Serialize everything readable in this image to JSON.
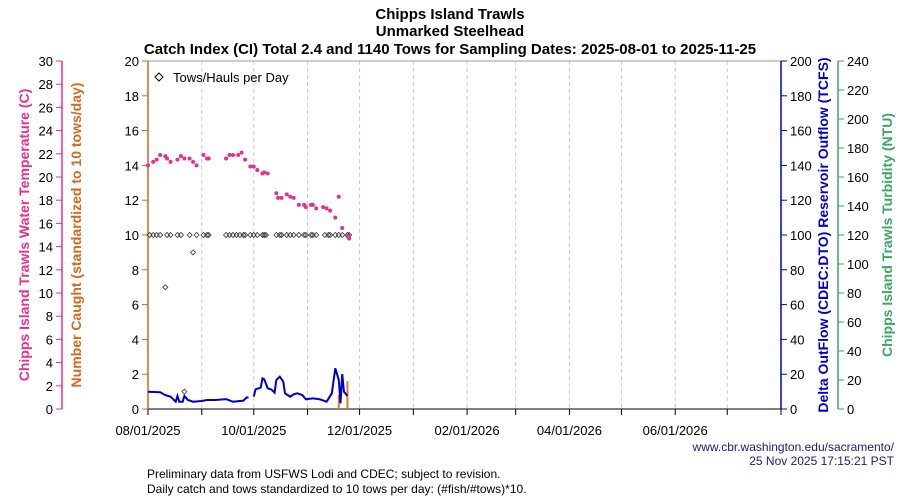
{
  "chart_data": {
    "type": "line",
    "title": [
      "Chipps Island Trawls",
      "Unmarked Steelhead",
      "Catch Index (CI) Total 2.4 and 1140 Tows for Sampling Dates: 2025-08-01 to 2025-11-25"
    ],
    "x_range": [
      "2025-08-01",
      "2026-08-01"
    ],
    "x_tick_labels": [
      "08/01/2025",
      "10/01/2025",
      "12/01/2025",
      "02/01/2026",
      "04/01/2026",
      "06/01/2026"
    ],
    "x_tick_dates": [
      "2025-08-01",
      "2025-10-01",
      "2025-12-01",
      "2026-02-01",
      "2026-04-01",
      "2026-06-01"
    ],
    "grid": "vertical dashed monthly",
    "axes": {
      "catch": {
        "label": "Number Caught (standardized to 10 tows/day)",
        "ylim": [
          0,
          20
        ],
        "ticks": [
          0,
          2,
          4,
          6,
          8,
          10,
          12,
          14,
          16,
          18,
          20
        ],
        "color": "#d2691e"
      },
      "temperature": {
        "label": "Chipps Island Trawls Water Temperature (C)",
        "ylim": [
          0,
          30
        ],
        "ticks": [
          0,
          2,
          4,
          6,
          8,
          10,
          12,
          14,
          16,
          18,
          20,
          22,
          24,
          26,
          28,
          30
        ],
        "color": "#e8308a"
      },
      "outflow": {
        "label": "Delta OutFlow (CDEC:DTO) Reservoir Outflow (TCFS)",
        "ylim": [
          0,
          200
        ],
        "ticks": [
          0,
          20,
          40,
          60,
          80,
          100,
          120,
          140,
          160,
          180,
          200
        ],
        "color": "#0000cc"
      },
      "turbidity": {
        "label": "Chipps Island Trawls Turbidity (NTU)",
        "ylim": [
          0,
          240
        ],
        "ticks": [
          0,
          20,
          40,
          60,
          80,
          100,
          120,
          140,
          160,
          180,
          200,
          220,
          240
        ],
        "color": "#3aa864"
      }
    },
    "legend": {
      "label": "Tows/Hauls per Day",
      "placement": "top-left"
    },
    "series": [
      {
        "name": "Number Caught (standardized to 10 tows/day)",
        "axis": "catch",
        "kind": "bar",
        "color": "#e07b22",
        "points": [
          [
            "2025-11-19",
            0.8
          ],
          [
            "2025-11-24",
            1.6
          ]
        ]
      },
      {
        "name": "Tows/Hauls per Day",
        "axis": "catch",
        "kind": "diamond",
        "color": "#333333",
        "points": [
          [
            "2025-08-02",
            10
          ],
          [
            "2025-08-04",
            10
          ],
          [
            "2025-08-06",
            10
          ],
          [
            "2025-08-08",
            10
          ],
          [
            "2025-08-11",
            7
          ],
          [
            "2025-08-12",
            10
          ],
          [
            "2025-08-14",
            10
          ],
          [
            "2025-08-18",
            10
          ],
          [
            "2025-08-20",
            10
          ],
          [
            "2025-08-22",
            1
          ],
          [
            "2025-08-25",
            10
          ],
          [
            "2025-08-27",
            9
          ],
          [
            "2025-08-29",
            10
          ],
          [
            "2025-09-02",
            10
          ],
          [
            "2025-09-04",
            10
          ],
          [
            "2025-09-05",
            10
          ],
          [
            "2025-09-15",
            10
          ],
          [
            "2025-09-17",
            10
          ],
          [
            "2025-09-19",
            10
          ],
          [
            "2025-09-21",
            10
          ],
          [
            "2025-09-23",
            10
          ],
          [
            "2025-09-25",
            10
          ],
          [
            "2025-09-26",
            10
          ],
          [
            "2025-09-29",
            10
          ],
          [
            "2025-10-01",
            10
          ],
          [
            "2025-10-03",
            10
          ],
          [
            "2025-10-06",
            10
          ],
          [
            "2025-10-07",
            10
          ],
          [
            "2025-10-08",
            10
          ],
          [
            "2025-10-14",
            10
          ],
          [
            "2025-10-16",
            10
          ],
          [
            "2025-10-17",
            10
          ],
          [
            "2025-10-20",
            10
          ],
          [
            "2025-10-22",
            10
          ],
          [
            "2025-10-24",
            10
          ],
          [
            "2025-10-27",
            10
          ],
          [
            "2025-10-30",
            10
          ],
          [
            "2025-10-31",
            10
          ],
          [
            "2025-11-03",
            10
          ],
          [
            "2025-11-04",
            10
          ],
          [
            "2025-11-06",
            10
          ],
          [
            "2025-11-11",
            10
          ],
          [
            "2025-11-13",
            10
          ],
          [
            "2025-11-14",
            10
          ],
          [
            "2025-11-17",
            10
          ],
          [
            "2025-11-19",
            10
          ],
          [
            "2025-11-21",
            10
          ],
          [
            "2025-11-24",
            10
          ],
          [
            "2025-11-25",
            10
          ]
        ]
      },
      {
        "name": "Chipps Island Trawls Water Temperature (C)",
        "axis": "temperature",
        "kind": "dot",
        "color": "#e8308a",
        "points": [
          [
            "2025-08-01",
            21.0
          ],
          [
            "2025-08-04",
            21.3
          ],
          [
            "2025-08-06",
            21.5
          ],
          [
            "2025-08-08",
            21.9
          ],
          [
            "2025-08-11",
            21.8
          ],
          [
            "2025-08-12",
            21.6
          ],
          [
            "2025-08-14",
            21.3
          ],
          [
            "2025-08-18",
            21.5
          ],
          [
            "2025-08-20",
            21.8
          ],
          [
            "2025-08-22",
            21.6
          ],
          [
            "2025-08-25",
            21.6
          ],
          [
            "2025-08-27",
            21.3
          ],
          [
            "2025-08-29",
            21.0
          ],
          [
            "2025-09-02",
            21.9
          ],
          [
            "2025-09-04",
            21.6
          ],
          [
            "2025-09-05",
            21.6
          ],
          [
            "2025-09-15",
            21.6
          ],
          [
            "2025-09-17",
            21.9
          ],
          [
            "2025-09-19",
            21.9
          ],
          [
            "2025-09-22",
            21.9
          ],
          [
            "2025-09-24",
            22.1
          ],
          [
            "2025-09-26",
            21.5
          ],
          [
            "2025-09-29",
            20.9
          ],
          [
            "2025-10-01",
            20.9
          ],
          [
            "2025-10-03",
            20.6
          ],
          [
            "2025-10-06",
            20.3
          ],
          [
            "2025-10-07",
            20.4
          ],
          [
            "2025-10-09",
            20.3
          ],
          [
            "2025-10-14",
            18.6
          ],
          [
            "2025-10-15",
            18.2
          ],
          [
            "2025-10-17",
            18.2
          ],
          [
            "2025-10-20",
            18.5
          ],
          [
            "2025-10-22",
            18.3
          ],
          [
            "2025-10-24",
            18.2
          ],
          [
            "2025-10-27",
            17.6
          ],
          [
            "2025-10-30",
            17.6
          ],
          [
            "2025-10-31",
            17.4
          ],
          [
            "2025-11-03",
            17.6
          ],
          [
            "2025-11-04",
            17.6
          ],
          [
            "2025-11-06",
            17.3
          ],
          [
            "2025-11-10",
            17.4
          ],
          [
            "2025-11-12",
            17.3
          ],
          [
            "2025-11-14",
            17.1
          ],
          [
            "2025-11-17",
            16.5
          ],
          [
            "2025-11-19",
            18.3
          ],
          [
            "2025-11-21",
            15.6
          ],
          [
            "2025-11-24",
            14.9
          ],
          [
            "2025-11-25",
            14.7
          ]
        ]
      },
      {
        "name": "Delta OutFlow (CDEC:DTO) Reservoir Outflow (TCFS)",
        "axis": "outflow",
        "kind": "line",
        "color": "#0000cc",
        "points": [
          [
            "2025-08-01",
            9.9
          ],
          [
            "2025-08-08",
            9.6
          ],
          [
            "2025-08-11",
            8.0
          ],
          [
            "2025-08-14",
            7.1
          ],
          [
            "2025-08-17",
            4.2
          ],
          [
            "2025-08-18",
            7.5
          ],
          [
            "2025-08-19",
            4.2
          ],
          [
            "2025-08-21",
            4.2
          ],
          [
            "2025-08-22",
            7.5
          ],
          [
            "2025-08-24",
            5.2
          ],
          [
            "2025-08-27",
            4.2
          ],
          [
            "2025-09-01",
            4.6
          ],
          [
            "2025-09-04",
            5.2
          ],
          [
            "2025-09-09",
            5.2
          ],
          [
            "2025-09-15",
            5.7
          ],
          [
            "2025-09-19",
            4.2
          ],
          [
            "2025-09-25",
            4.8
          ],
          [
            "2025-09-27",
            6.7
          ],
          [
            "2025-09-28",
            6.5
          ],
          null,
          [
            "2025-10-01",
            7.1
          ],
          [
            "2025-10-02",
            11.3
          ],
          [
            "2025-10-05",
            12.3
          ],
          [
            "2025-10-06",
            17.6
          ],
          [
            "2025-10-07",
            17.1
          ],
          [
            "2025-10-09",
            11.9
          ],
          [
            "2025-10-11",
            11.3
          ],
          [
            "2025-10-13",
            9.4
          ],
          [
            "2025-10-14",
            16.7
          ],
          [
            "2025-10-16",
            18.6
          ],
          [
            "2025-10-18",
            15.7
          ],
          [
            "2025-10-19",
            9.0
          ],
          [
            "2025-10-22",
            7.1
          ],
          [
            "2025-10-24",
            8.4
          ],
          [
            "2025-10-26",
            9.0
          ],
          [
            "2025-10-29",
            8.0
          ],
          [
            "2025-10-31",
            5.6
          ],
          [
            "2025-11-04",
            6.1
          ],
          [
            "2025-11-08",
            5.6
          ],
          [
            "2025-11-12",
            4.2
          ],
          [
            "2025-11-15",
            9.0
          ],
          [
            "2025-11-17",
            23.4
          ],
          [
            "2025-11-19",
            16.7
          ],
          [
            "2025-11-20",
            3.3
          ],
          [
            "2025-11-21",
            20.1
          ],
          [
            "2025-11-22",
            9.9
          ],
          [
            "2025-11-24",
            7.5
          ]
        ]
      }
    ]
  },
  "footer": {
    "credit_url": "www.cbr.washington.edu/sacramento/",
    "timestamp": "25 Nov 2025 17:15:21 PST",
    "note1": "Preliminary data from USFWS Lodi and CDEC; subject to revision.",
    "note2": "Daily catch and tows standardized to 10 tows per day: (#fish/#tows)*10."
  }
}
